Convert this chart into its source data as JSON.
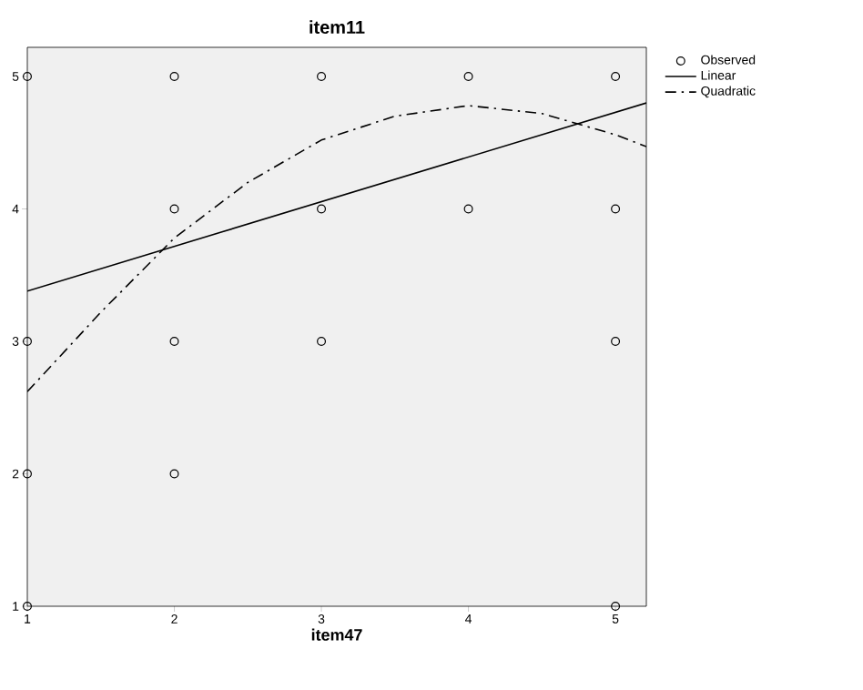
{
  "chart_data": {
    "type": "scatter",
    "title": "item11",
    "xlabel": "item47",
    "series": [
      {
        "name": "Observed",
        "type": "scatter",
        "marker": "circle",
        "color": "#000000",
        "x": [
          1,
          1,
          1,
          1,
          2,
          2,
          2,
          2,
          3,
          3,
          3,
          4,
          4,
          5,
          5,
          5,
          5
        ],
        "values": [
          5,
          3,
          2,
          1,
          5,
          4,
          3,
          2,
          5,
          4,
          3,
          5,
          4,
          5,
          4,
          3,
          1
        ]
      },
      {
        "name": "Linear",
        "type": "line",
        "marker": "none",
        "line_style": "solid",
        "color": "#000000",
        "x": [
          1,
          5.21
        ],
        "values": [
          3.38,
          4.8
        ]
      },
      {
        "name": "Quadratic",
        "type": "line",
        "marker": "none",
        "line_style": "dashdot",
        "color": "#000000",
        "x": [
          1,
          1.5,
          2,
          2.5,
          3,
          3.5,
          4,
          4.5,
          5,
          5.21
        ],
        "values": [
          2.62,
          3.22,
          3.78,
          4.2,
          4.52,
          4.7,
          4.78,
          4.72,
          4.56,
          4.47
        ]
      }
    ],
    "xlim": [
      1,
      5.21
    ],
    "ylim": [
      1,
      5.22
    ],
    "xticks": [
      1,
      2,
      3,
      4,
      5
    ],
    "yticks": [
      1,
      2,
      3,
      4,
      5
    ],
    "grid": false,
    "legend": "top right"
  }
}
